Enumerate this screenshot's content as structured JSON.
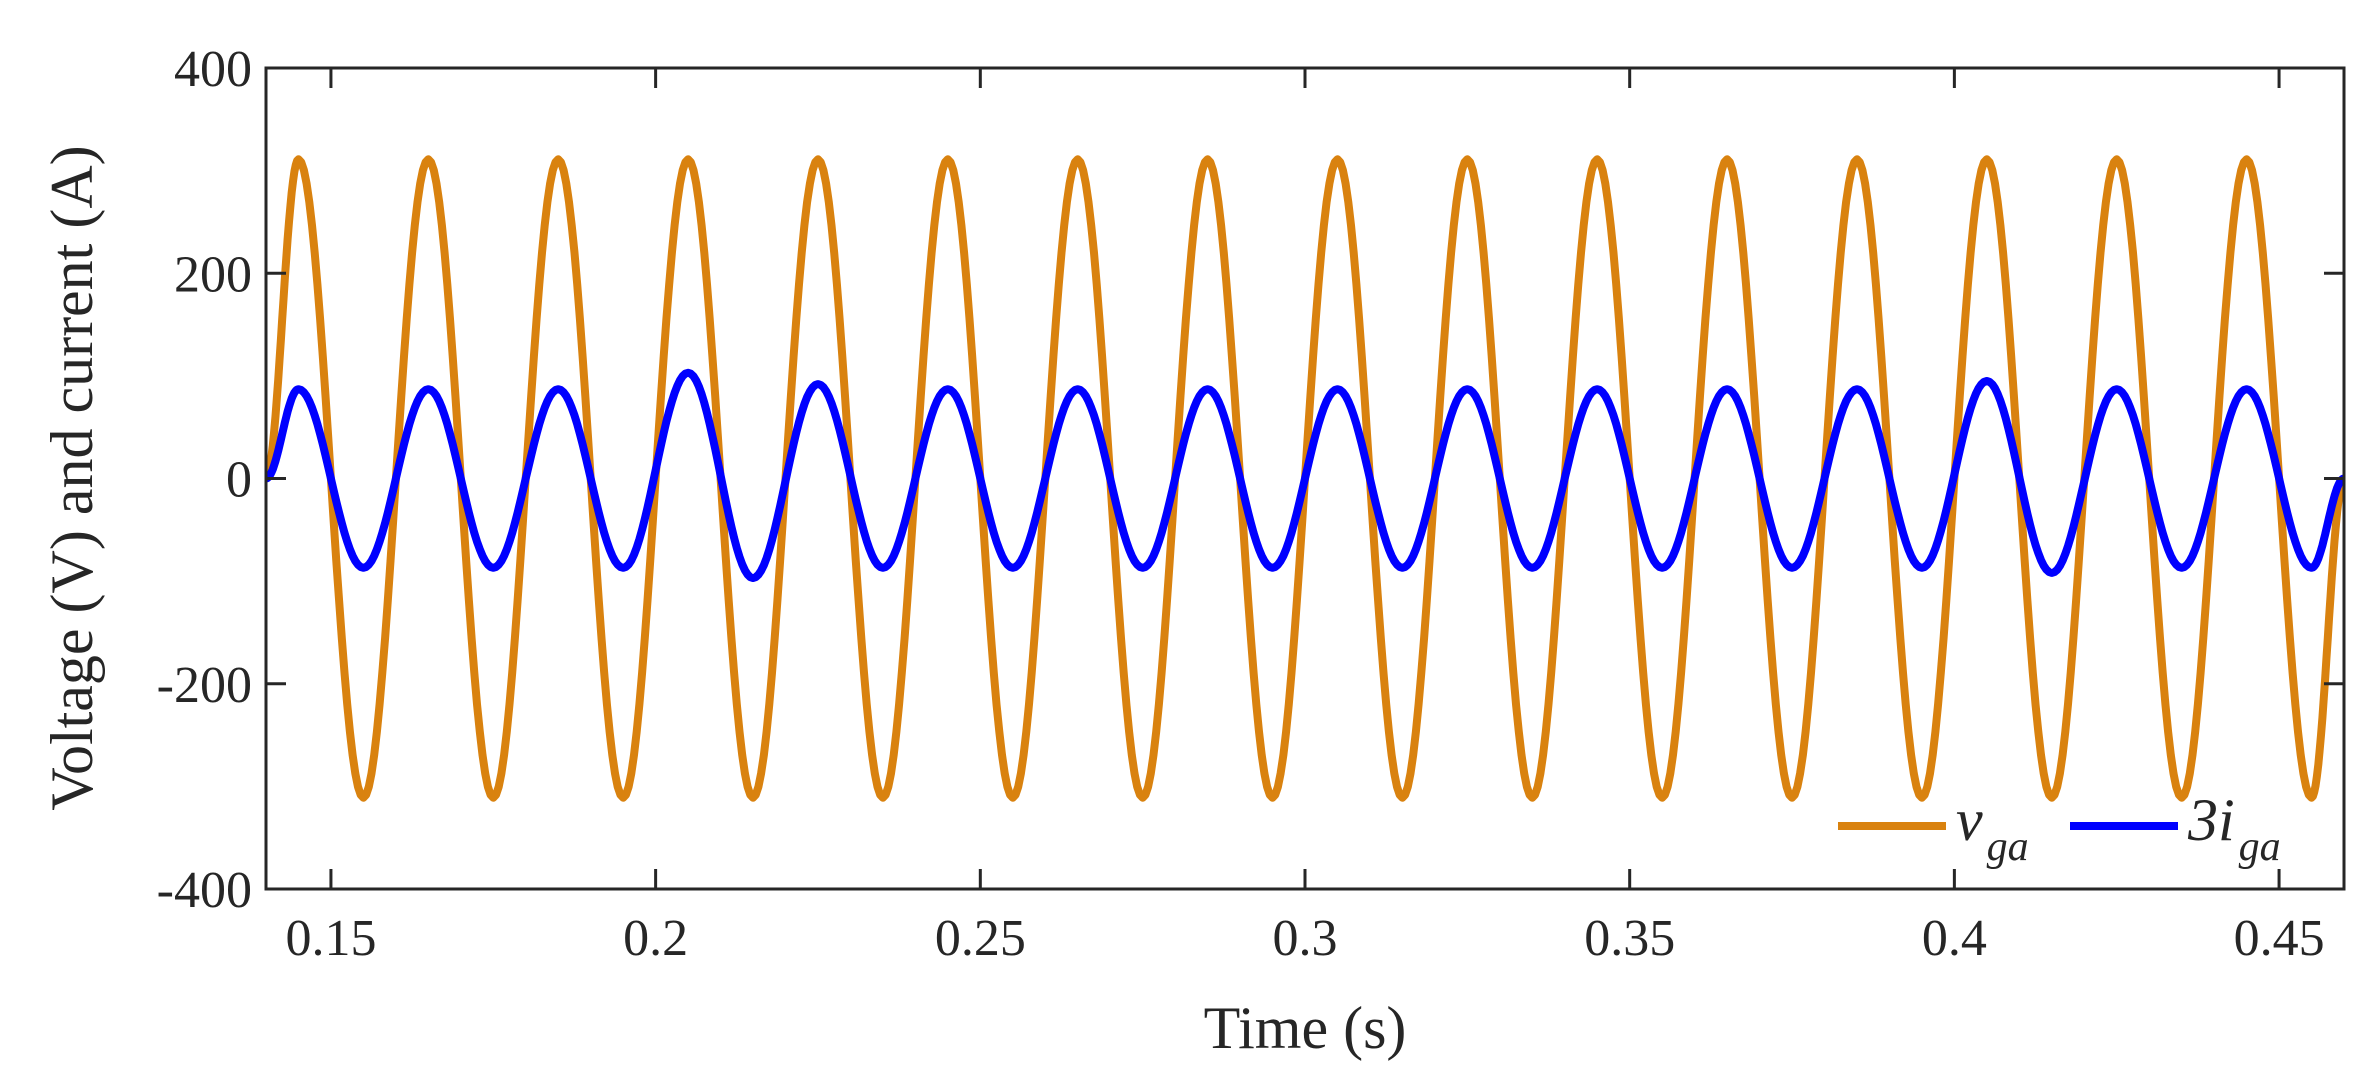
{
  "chart_data": {
    "type": "line",
    "title": "",
    "xlabel": "Time (s)",
    "ylabel": "Voltage (V) and current (A)",
    "xlim": [
      0.14,
      0.46
    ],
    "ylim": [
      -400,
      400
    ],
    "xticks": [
      0.15,
      0.2,
      0.25,
      0.3,
      0.35,
      0.4,
      0.45
    ],
    "xtick_labels": [
      "0.15",
      "0.2",
      "0.25",
      "0.3",
      "0.35",
      "0.4",
      "0.45"
    ],
    "yticks": [
      -400,
      -200,
      0,
      200,
      400
    ],
    "ytick_labels": [
      "-400",
      "-200",
      "0",
      "200",
      "400"
    ],
    "grid": false,
    "legend_position": "bottom-right",
    "series": [
      {
        "name_main": "v",
        "name_sub": "ga",
        "color": "#d9820f",
        "waveform": "sine",
        "frequency_hz": 50,
        "amplitude": 311,
        "phase_start_time": 0.14,
        "peaks": [
          {
            "t": 0.145,
            "v": 311
          },
          {
            "t": 0.165,
            "v": 311
          },
          {
            "t": 0.185,
            "v": 311
          },
          {
            "t": 0.205,
            "v": 311
          },
          {
            "t": 0.225,
            "v": 311
          },
          {
            "t": 0.245,
            "v": 311
          },
          {
            "t": 0.265,
            "v": 311
          },
          {
            "t": 0.285,
            "v": 311
          },
          {
            "t": 0.305,
            "v": 311
          },
          {
            "t": 0.325,
            "v": 311
          },
          {
            "t": 0.345,
            "v": 311
          },
          {
            "t": 0.365,
            "v": 311
          },
          {
            "t": 0.385,
            "v": 311
          },
          {
            "t": 0.405,
            "v": 311
          },
          {
            "t": 0.425,
            "v": 311
          },
          {
            "t": 0.445,
            "v": 311
          }
        ],
        "troughs": [
          {
            "t": 0.155,
            "v": -311
          },
          {
            "t": 0.175,
            "v": -311
          },
          {
            "t": 0.195,
            "v": -311
          },
          {
            "t": 0.215,
            "v": -311
          },
          {
            "t": 0.235,
            "v": -311
          },
          {
            "t": 0.255,
            "v": -311
          },
          {
            "t": 0.275,
            "v": -311
          },
          {
            "t": 0.295,
            "v": -311
          },
          {
            "t": 0.315,
            "v": -311
          },
          {
            "t": 0.335,
            "v": -311
          },
          {
            "t": 0.355,
            "v": -311
          },
          {
            "t": 0.375,
            "v": -311
          },
          {
            "t": 0.395,
            "v": -311
          },
          {
            "t": 0.415,
            "v": -311
          },
          {
            "t": 0.435,
            "v": -311
          },
          {
            "t": 0.455,
            "v": -311
          }
        ]
      },
      {
        "name_main": "3i",
        "name_sub": "ga",
        "color": "#0000ff",
        "waveform": "sine",
        "frequency_hz": 50,
        "amplitude": 87,
        "phase_start_time": 0.14,
        "peaks": [
          {
            "t": 0.145,
            "v": 87
          },
          {
            "t": 0.165,
            "v": 87
          },
          {
            "t": 0.185,
            "v": 87
          },
          {
            "t": 0.205,
            "v": 103
          },
          {
            "t": 0.225,
            "v": 92
          },
          {
            "t": 0.245,
            "v": 87
          },
          {
            "t": 0.265,
            "v": 87
          },
          {
            "t": 0.285,
            "v": 87
          },
          {
            "t": 0.305,
            "v": 87
          },
          {
            "t": 0.325,
            "v": 87
          },
          {
            "t": 0.345,
            "v": 87
          },
          {
            "t": 0.365,
            "v": 87
          },
          {
            "t": 0.385,
            "v": 87
          },
          {
            "t": 0.405,
            "v": 95
          },
          {
            "t": 0.425,
            "v": 87
          },
          {
            "t": 0.445,
            "v": 87
          }
        ],
        "troughs": [
          {
            "t": 0.155,
            "v": -87
          },
          {
            "t": 0.175,
            "v": -87
          },
          {
            "t": 0.195,
            "v": -87
          },
          {
            "t": 0.215,
            "v": -97
          },
          {
            "t": 0.235,
            "v": -87
          },
          {
            "t": 0.255,
            "v": -87
          },
          {
            "t": 0.275,
            "v": -87
          },
          {
            "t": 0.295,
            "v": -87
          },
          {
            "t": 0.315,
            "v": -87
          },
          {
            "t": 0.335,
            "v": -87
          },
          {
            "t": 0.355,
            "v": -87
          },
          {
            "t": 0.375,
            "v": -87
          },
          {
            "t": 0.395,
            "v": -87
          },
          {
            "t": 0.415,
            "v": -92
          },
          {
            "t": 0.435,
            "v": -87
          },
          {
            "t": 0.455,
            "v": -87
          }
        ]
      }
    ]
  }
}
